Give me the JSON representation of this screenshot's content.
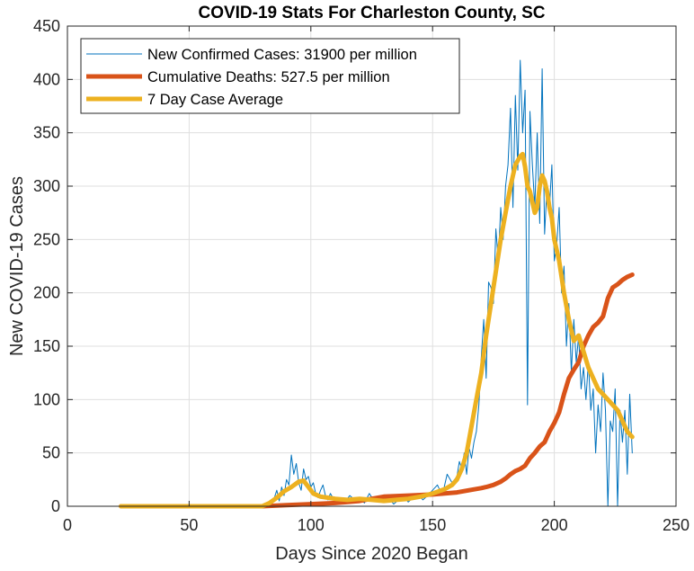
{
  "chart_data": {
    "type": "line",
    "title": "COVID-19 Stats For Charleston County, SC",
    "xlabel": "Days Since 2020 Began",
    "ylabel": "New COVID-19 Cases",
    "xlim": [
      0,
      250
    ],
    "ylim": [
      0,
      450
    ],
    "grid": true,
    "legend_position": "top-left",
    "x_ticks": [
      "0",
      "50",
      "100",
      "150",
      "200",
      "250"
    ],
    "y_ticks": [
      "0",
      "50",
      "100",
      "150",
      "200",
      "250",
      "300",
      "350",
      "400",
      "450"
    ],
    "series": [
      {
        "name": "New Confirmed Cases: 31900 per million",
        "color": "#0072BD",
        "style": "thin",
        "x": [
          22,
          50,
          80,
          83,
          85,
          86,
          87,
          88,
          89,
          90,
          91,
          92,
          93,
          94,
          95,
          96,
          97,
          98,
          99,
          100,
          101,
          102,
          103,
          104,
          105,
          106,
          107,
          108,
          109,
          110,
          112,
          114,
          116,
          118,
          120,
          122,
          124,
          126,
          128,
          130,
          132,
          134,
          136,
          138,
          140,
          142,
          144,
          146,
          148,
          150,
          152,
          154,
          156,
          158,
          160,
          161,
          162,
          163,
          164,
          165,
          166,
          167,
          168,
          169,
          170,
          171,
          172,
          173,
          174,
          175,
          176,
          177,
          178,
          179,
          180,
          181,
          182,
          183,
          184,
          185,
          186,
          187,
          188,
          189,
          190,
          191,
          192,
          193,
          194,
          195,
          196,
          197,
          198,
          199,
          200,
          201,
          202,
          203,
          204,
          205,
          206,
          207,
          208,
          209,
          210,
          211,
          212,
          213,
          214,
          215,
          216,
          217,
          218,
          219,
          220,
          221,
          222,
          223,
          224,
          225,
          226,
          227,
          228,
          229,
          230,
          231,
          232
        ],
        "y": [
          0,
          0,
          0,
          3,
          8,
          15,
          5,
          18,
          10,
          25,
          20,
          48,
          30,
          40,
          22,
          15,
          35,
          25,
          28,
          18,
          22,
          12,
          8,
          15,
          20,
          10,
          6,
          12,
          8,
          5,
          8,
          4,
          10,
          6,
          8,
          3,
          12,
          5,
          9,
          4,
          8,
          2,
          6,
          10,
          4,
          8,
          12,
          6,
          10,
          15,
          20,
          10,
          30,
          22,
          28,
          42,
          35,
          50,
          30,
          55,
          45,
          60,
          70,
          95,
          140,
          175,
          120,
          210,
          205,
          190,
          260,
          230,
          280,
          250,
          300,
          320,
          373,
          280,
          385,
          315,
          418,
          350,
          390,
          95,
          370,
          320,
          280,
          350,
          265,
          410,
          255,
          300,
          280,
          320,
          230,
          245,
          280,
          200,
          225,
          150,
          190,
          125,
          175,
          135,
          160,
          110,
          130,
          100,
          135,
          90,
          110,
          50,
          95,
          70,
          125,
          90,
          0,
          80,
          70,
          110,
          0,
          90,
          60,
          90,
          30,
          105,
          50
        ]
      },
      {
        "name": "Cumulative Deaths: 527.5 per million",
        "color": "#D95319",
        "style": "thick",
        "x": [
          22,
          80,
          90,
          100,
          110,
          120,
          130,
          140,
          150,
          155,
          160,
          165,
          170,
          172,
          175,
          178,
          180,
          182,
          184,
          186,
          188,
          190,
          192,
          194,
          196,
          198,
          200,
          202,
          204,
          206,
          208,
          210,
          212,
          214,
          216,
          218,
          220,
          222,
          224,
          226,
          228,
          230,
          232
        ],
        "y": [
          0,
          0,
          1,
          2,
          3,
          5,
          9,
          10,
          11,
          12,
          13,
          15,
          17,
          18,
          20,
          23,
          26,
          30,
          33,
          35,
          38,
          45,
          50,
          56,
          60,
          70,
          78,
          88,
          105,
          120,
          128,
          135,
          150,
          160,
          168,
          172,
          178,
          195,
          205,
          208,
          212,
          215,
          217
        ]
      },
      {
        "name": "7 Day Case Average",
        "color": "#EDB120",
        "style": "thick",
        "x": [
          22,
          50,
          80,
          83,
          86,
          89,
          92,
          95,
          97,
          99,
          101,
          104,
          107,
          110,
          115,
          120,
          125,
          130,
          135,
          140,
          145,
          150,
          155,
          158,
          160,
          162,
          164,
          166,
          168,
          170,
          172,
          174,
          176,
          178,
          180,
          182,
          184,
          186,
          187,
          188,
          189,
          190,
          191,
          192,
          193,
          194,
          195,
          196,
          197,
          198,
          199,
          200,
          202,
          204,
          206,
          208,
          210,
          212,
          214,
          216,
          218,
          220,
          222,
          224,
          226,
          228,
          230,
          232
        ],
        "y": [
          0,
          0,
          0,
          3,
          8,
          14,
          18,
          23,
          24,
          18,
          12,
          9,
          8,
          7,
          6,
          7,
          6,
          5,
          6,
          7,
          9,
          12,
          16,
          20,
          25,
          35,
          50,
          75,
          100,
          125,
          160,
          190,
          220,
          250,
          275,
          300,
          320,
          328,
          330,
          318,
          300,
          295,
          285,
          275,
          280,
          300,
          310,
          305,
          295,
          280,
          270,
          250,
          230,
          200,
          175,
          155,
          160,
          145,
          130,
          120,
          110,
          105,
          100,
          95,
          90,
          80,
          70,
          65
        ]
      }
    ]
  }
}
